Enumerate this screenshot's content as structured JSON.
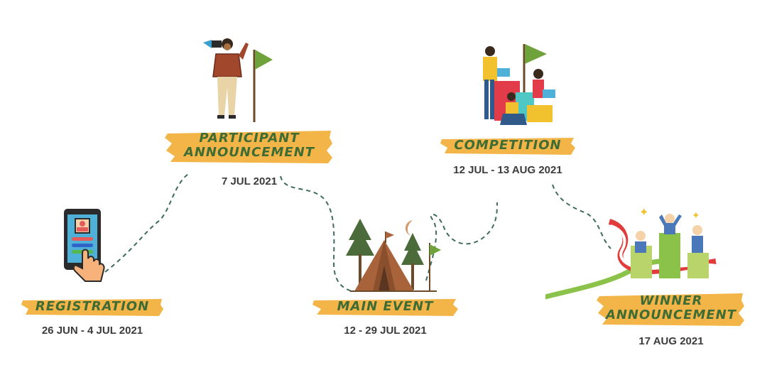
{
  "stages": [
    {
      "title": "REGISTRATION",
      "date": "26 JUN - 4 JUL 2021",
      "icon": "phone-tap-icon"
    },
    {
      "title_line1": "PARTICIPANT",
      "title_line2": "ANNOUNCEMENT",
      "date": "7 JUL 2021",
      "icon": "megaphone-person-icon"
    },
    {
      "title": "MAIN EVENT",
      "date": "12 - 29 JUL 2021",
      "icon": "camp-tent-icon"
    },
    {
      "title": "COMPETITION",
      "date": "12 JUL - 13 AUG 2021",
      "icon": "team-laptops-icon"
    },
    {
      "title_line1": "WINNER",
      "title_line2": "ANNOUNCEMENT",
      "date": "17 AUG 2021",
      "icon": "winners-podium-icon"
    }
  ],
  "colors": {
    "banner": "#f3b547",
    "title": "#3f6b35",
    "date": "#3b3b3b",
    "path": "#3f6b5a",
    "flag": "#6fa23a"
  }
}
